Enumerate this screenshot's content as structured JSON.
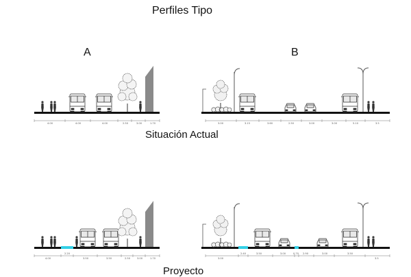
{
  "title": "Perfiles Tipo",
  "section_labels": [
    "A",
    "B"
  ],
  "rows": [
    {
      "caption": "Situación Actual",
      "A_dims": [
        "4.00",
        "4.00",
        "4.00",
        "2.50",
        "3.00",
        "1.70"
      ],
      "B_dims": [
        "3.00",
        "3.15",
        "3.60",
        "2.50",
        "3.00",
        "3.00",
        "5.10",
        "3.5"
      ]
    },
    {
      "caption": "Proyecto",
      "A_dims": [
        "4.00",
        "2.20",
        "3.50",
        "3.50",
        "2.50",
        "3.00",
        "1.70"
      ],
      "B_dims": [
        "3.00",
        "2.40",
        "3.50",
        "3.00",
        "0.70",
        "2.90",
        "3.00",
        "3.50",
        "3.5"
      ]
    }
  ],
  "colors": {
    "bike_lane": "#33d0e6",
    "ground": "#111111",
    "building": "#8a8a8a"
  }
}
